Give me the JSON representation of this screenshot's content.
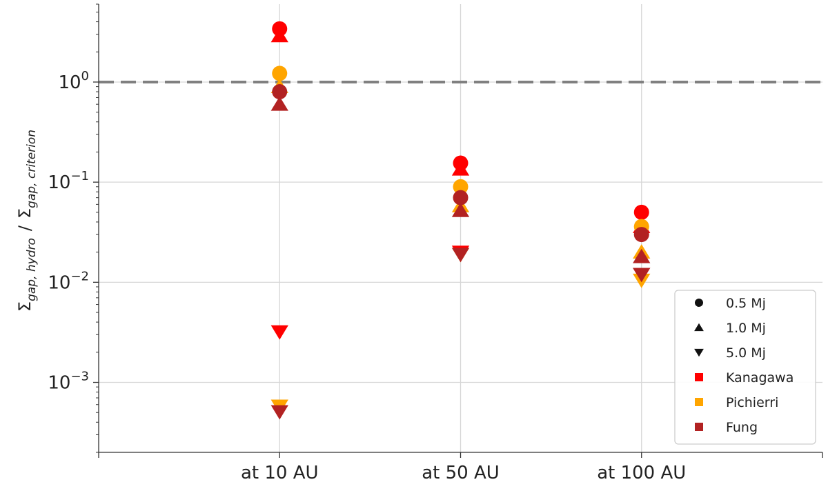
{
  "chart_data": {
    "type": "scatter",
    "title": "",
    "xlabel": "",
    "ylabel": "Σgap, hydro / Σgap, criterion",
    "ylabel_parts": {
      "sigma": "Σ",
      "sub1": "gap, hydro",
      "slash": "/",
      "sub2": "gap, criterion"
    },
    "categories": [
      "at 10 AU",
      "at 50 AU",
      "at 100 AU"
    ],
    "y_scale": "log",
    "ylim": [
      0.0002,
      6
    ],
    "y_ticks": [
      {
        "value": 0.001,
        "base": "10",
        "exp": "−3"
      },
      {
        "value": 0.01,
        "base": "10",
        "exp": "−2"
      },
      {
        "value": 0.1,
        "base": "10",
        "exp": "−1"
      },
      {
        "value": 1,
        "base": "10",
        "exp": "0"
      }
    ],
    "grid": true,
    "reference_line": {
      "y": 1,
      "style": "dashed",
      "color": "#808080"
    },
    "legend_position": "bottom-right",
    "colors": {
      "Kanagawa": "#ff0000",
      "Pichierri": "#ffa500",
      "Fung": "#b22222"
    },
    "legend": [
      {
        "label": "0.5 Mj",
        "marker": "circle",
        "color": "#111111"
      },
      {
        "label": "1.0 Mj",
        "marker": "triangle-up",
        "color": "#111111"
      },
      {
        "label": "5.0 Mj",
        "marker": "triangle-down",
        "color": "#111111"
      },
      {
        "label": "Kanagawa",
        "marker": "square",
        "color": "#ff0000"
      },
      {
        "label": "Pichierri",
        "marker": "square",
        "color": "#ffa500"
      },
      {
        "label": "Fung",
        "marker": "square",
        "color": "#b22222"
      }
    ],
    "series": [
      {
        "name": "Kanagawa",
        "mass": "1.0 Mj",
        "marker": "triangle-up",
        "values": [
          2.9,
          0.135,
          0.036
        ]
      },
      {
        "name": "Kanagawa",
        "mass": "5.0 Mj",
        "marker": "triangle-down",
        "values": [
          0.0032,
          0.02,
          0.012
        ]
      },
      {
        "name": "Kanagawa",
        "mass": "0.5 Mj",
        "marker": "circle",
        "values": [
          3.4,
          0.155,
          0.05
        ]
      },
      {
        "name": "Pichierri",
        "mass": "1.0 Mj",
        "marker": "triangle-up",
        "values": [
          0.9,
          0.058,
          0.02
        ]
      },
      {
        "name": "Pichierri",
        "mass": "5.0 Mj",
        "marker": "triangle-down",
        "values": [
          0.00058,
          0.019,
          0.0105
        ]
      },
      {
        "name": "Pichierri",
        "mass": "0.5 Mj",
        "marker": "circle",
        "values": [
          1.22,
          0.09,
          0.036
        ]
      },
      {
        "name": "Fung",
        "mass": "1.0 Mj",
        "marker": "triangle-up",
        "values": [
          0.6,
          0.052,
          0.018
        ]
      },
      {
        "name": "Fung",
        "mass": "5.0 Mj",
        "marker": "triangle-down",
        "values": [
          0.00051,
          0.019,
          0.012
        ]
      },
      {
        "name": "Fung",
        "mass": "0.5 Mj",
        "marker": "circle",
        "values": [
          0.8,
          0.07,
          0.03
        ]
      }
    ]
  }
}
